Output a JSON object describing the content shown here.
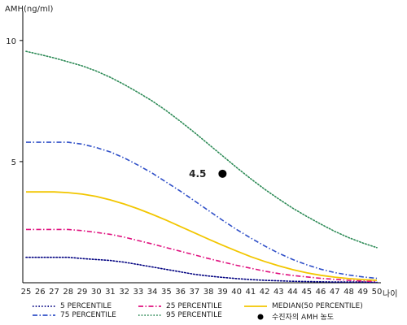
{
  "chart_data": {
    "type": "line",
    "ylabel": "AMH(ng/ml)",
    "xlabel": "나이",
    "xlim": [
      25,
      50
    ],
    "ylim": [
      0,
      11
    ],
    "yticks": [
      5,
      10
    ],
    "x": [
      25,
      26,
      27,
      28,
      29,
      30,
      31,
      32,
      33,
      34,
      35,
      36,
      37,
      38,
      39,
      40,
      41,
      42,
      43,
      44,
      45,
      46,
      47,
      48,
      49,
      50
    ],
    "series": [
      {
        "name": "5 PERCENTILE",
        "color": "#000080",
        "style": "dotted",
        "values": [
          1.05,
          1.05,
          1.05,
          1.05,
          1.0,
          0.96,
          0.92,
          0.85,
          0.75,
          0.65,
          0.55,
          0.45,
          0.35,
          0.28,
          0.22,
          0.17,
          0.13,
          0.1,
          0.08,
          0.06,
          0.05,
          0.04,
          0.03,
          0.03,
          0.03,
          0.02
        ]
      },
      {
        "name": "25 PERCENTILE",
        "color": "#e0117f",
        "style": "dashdot",
        "values": [
          2.2,
          2.2,
          2.2,
          2.2,
          2.15,
          2.08,
          2.0,
          1.88,
          1.74,
          1.6,
          1.45,
          1.3,
          1.15,
          1.0,
          0.86,
          0.72,
          0.6,
          0.48,
          0.38,
          0.3,
          0.24,
          0.18,
          0.14,
          0.1,
          0.07,
          0.05
        ]
      },
      {
        "name": "MEDIAN(50 PERCENTILE)",
        "color": "#f2c600",
        "style": "solid",
        "values": [
          3.75,
          3.75,
          3.75,
          3.72,
          3.66,
          3.56,
          3.42,
          3.25,
          3.05,
          2.82,
          2.58,
          2.32,
          2.06,
          1.8,
          1.55,
          1.31,
          1.08,
          0.88,
          0.7,
          0.54,
          0.41,
          0.31,
          0.23,
          0.17,
          0.13,
          0.1
        ]
      },
      {
        "name": "75 PERCENTILE",
        "color": "#3050c8",
        "style": "dashdot",
        "values": [
          5.8,
          5.8,
          5.8,
          5.8,
          5.72,
          5.58,
          5.4,
          5.15,
          4.85,
          4.52,
          4.15,
          3.78,
          3.38,
          2.98,
          2.58,
          2.2,
          1.85,
          1.52,
          1.22,
          0.96,
          0.74,
          0.56,
          0.42,
          0.32,
          0.24,
          0.18
        ]
      },
      {
        "name": "95 PERCENTILE",
        "color": "#2e8b57",
        "style": "dotted",
        "values": [
          9.55,
          9.42,
          9.28,
          9.12,
          8.95,
          8.74,
          8.48,
          8.18,
          7.85,
          7.5,
          7.1,
          6.66,
          6.2,
          5.72,
          5.24,
          4.76,
          4.3,
          3.86,
          3.46,
          3.08,
          2.74,
          2.42,
          2.12,
          1.86,
          1.64,
          1.45
        ]
      }
    ],
    "points": [
      {
        "name": "수진자의 AMH 농도",
        "x": 39,
        "y": 4.5,
        "label": "4.5",
        "color": "#000000"
      }
    ],
    "grid": false,
    "legend_position": "bottom"
  }
}
